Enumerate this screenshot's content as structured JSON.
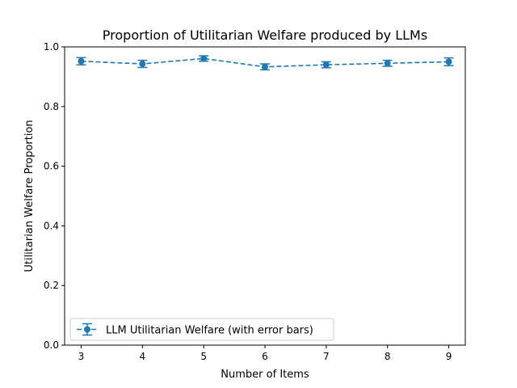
{
  "chart_data": {
    "type": "line",
    "title": "Proportion of Utilitarian Welfare produced by LLMs",
    "xlabel": "Number of Items",
    "ylabel": "Utilitarian Welfare Proportion",
    "xlim": [
      2.73,
      9.27
    ],
    "ylim": [
      0.0,
      1.0
    ],
    "x_ticks": [
      3,
      4,
      5,
      6,
      7,
      8,
      9
    ],
    "y_ticks": [
      0.0,
      0.2,
      0.4,
      0.6,
      0.8,
      1.0
    ],
    "y_tick_labels": [
      "0.0",
      "0.2",
      "0.4",
      "0.6",
      "0.8",
      "1.0"
    ],
    "grid": false,
    "legend_position": "lower-left",
    "series": [
      {
        "name": "LLM Utilitarian Welfare (with error bars)",
        "color": "#1f77b4",
        "linestyle": "dashed",
        "marker": "circle",
        "x": [
          3,
          4,
          5,
          6,
          7,
          8,
          9
        ],
        "y": [
          0.952,
          0.943,
          0.961,
          0.933,
          0.94,
          0.945,
          0.95
        ],
        "yerr": [
          0.012,
          0.012,
          0.009,
          0.01,
          0.01,
          0.01,
          0.013
        ]
      }
    ]
  }
}
